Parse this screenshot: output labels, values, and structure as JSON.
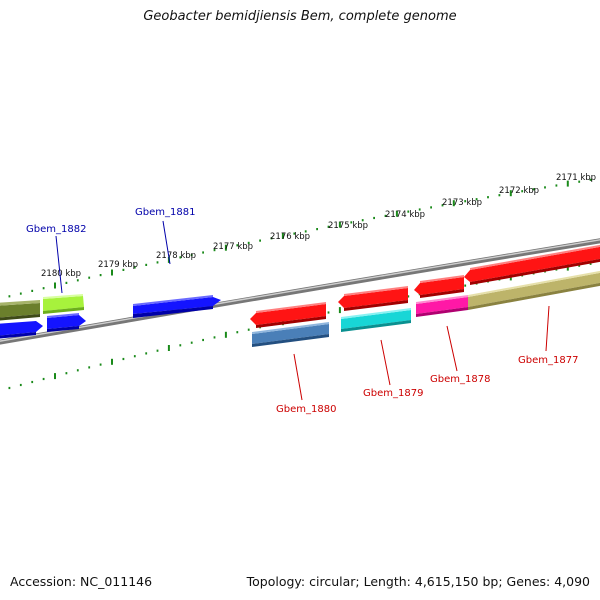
{
  "title": "Geobacter bemidjiensis Bem, complete genome",
  "footer": {
    "accession": "Accession: NC_011146",
    "summary": "Topology: circular; Length: 4,615,150 bp; Genes: 4,090"
  },
  "axis": {
    "ticks": [
      "2171 kbp",
      "2172 kbp",
      "2173 kbp",
      "2174 kbp",
      "2175 kbp",
      "2176 kbp",
      "2177 kbp",
      "2178 kbp",
      "2179 kbp",
      "2180 kbp"
    ]
  },
  "genes": [
    {
      "label": "Gbem_1877",
      "strand": "reverse",
      "color": "#cc0000"
    },
    {
      "label": "Gbem_1878",
      "strand": "reverse",
      "color": "#cc0000"
    },
    {
      "label": "Gbem_1879",
      "strand": "reverse",
      "color": "#cc0000"
    },
    {
      "label": "Gbem_1880",
      "strand": "reverse",
      "color": "#cc0000"
    },
    {
      "label": "Gbem_1881",
      "strand": "forward",
      "color": "#0000aa"
    },
    {
      "label": "Gbem_1882",
      "strand": "forward",
      "color": "#0000aa"
    }
  ],
  "colors": {
    "forward": "#0a0aff",
    "reverse": "#ff1010",
    "tick": "#1a8a1a",
    "backbone": "#8c8c8c"
  }
}
